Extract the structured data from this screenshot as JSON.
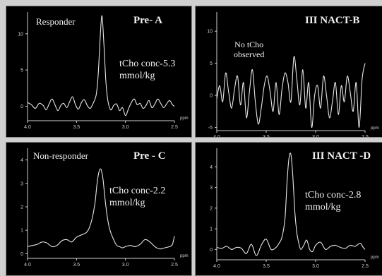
{
  "chart_data": [
    {
      "type": "line",
      "panel_id": "A",
      "group_label": "Responder",
      "title": "Pre- A",
      "annotation": [
        "tCho conc-5.3",
        "mmol/kg"
      ],
      "xlabel": "ppm",
      "xlim": [
        4.0,
        2.5
      ],
      "x_reversed": true,
      "x_ticks": [
        "4.0",
        "3.5",
        "3.0",
        "2.5"
      ],
      "ylim": [
        -2,
        13
      ],
      "y_ticks": [
        "10",
        "5",
        "0"
      ],
      "series": [
        {
          "x": [
            4.0,
            3.96,
            3.92,
            3.88,
            3.84,
            3.81,
            3.78,
            3.75,
            3.72,
            3.69,
            3.66,
            3.63,
            3.6,
            3.57,
            3.54,
            3.51,
            3.48,
            3.45,
            3.42,
            3.39,
            3.36,
            3.33,
            3.3,
            3.28,
            3.26,
            3.24,
            3.22,
            3.2,
            3.18,
            3.15,
            3.12,
            3.09,
            3.06,
            3.03,
            3.0,
            2.97,
            2.94,
            2.91,
            2.88,
            2.85,
            2.82,
            2.79,
            2.76,
            2.73,
            2.7,
            2.67,
            2.64,
            2.61,
            2.58,
            2.55,
            2.52,
            2.5
          ],
          "y": [
            0.5,
            0.2,
            -0.3,
            0.4,
            0.1,
            -0.5,
            0.3,
            1.0,
            0.2,
            -0.6,
            0.1,
            0.4,
            -0.2,
            0.6,
            1.3,
            0.2,
            -0.4,
            0.5,
            0.9,
            0.1,
            -0.3,
            0.4,
            1.5,
            4.0,
            9.0,
            12.5,
            8.5,
            3.5,
            0.8,
            -0.5,
            0.1,
            0.3,
            -0.6,
            -0.2,
            -1.3,
            -0.4,
            0.5,
            1.0,
            0.2,
            0.4,
            -0.3,
            0.1,
            0.8,
            -0.2,
            0.3,
            1.0,
            0.4,
            -0.2,
            0.3,
            0.8,
            0.2,
            0.0
          ]
        }
      ]
    },
    {
      "type": "line",
      "panel_id": "B",
      "title": "III NACT-B",
      "annotation": [
        "No tCho",
        "observed"
      ],
      "xlabel": "ppm",
      "xlim": [
        4.0,
        2.5
      ],
      "x_reversed": true,
      "x_ticks": [
        "4.0",
        "3.5",
        "3.0",
        "2.5"
      ],
      "ylim": [
        -5.5,
        13
      ],
      "y_ticks": [
        "10",
        "5",
        "0",
        "-5"
      ],
      "series": [
        {
          "x": [
            4.0,
            3.97,
            3.94,
            3.91,
            3.88,
            3.85,
            3.82,
            3.79,
            3.76,
            3.73,
            3.7,
            3.67,
            3.64,
            3.61,
            3.58,
            3.55,
            3.52,
            3.49,
            3.46,
            3.43,
            3.4,
            3.37,
            3.34,
            3.31,
            3.28,
            3.25,
            3.22,
            3.19,
            3.16,
            3.13,
            3.1,
            3.07,
            3.04,
            3.01,
            2.98,
            2.95,
            2.92,
            2.89,
            2.86,
            2.83,
            2.8,
            2.77,
            2.74,
            2.71,
            2.68,
            2.65,
            2.62,
            2.59,
            2.56,
            2.53,
            2.5
          ],
          "y": [
            -0.5,
            1.5,
            -1.0,
            3.5,
            0.5,
            -2.0,
            1.0,
            3.0,
            -1.5,
            2.0,
            -3.5,
            0.5,
            4.0,
            -1.0,
            -4.5,
            -2.0,
            1.5,
            3.0,
            0.5,
            -2.5,
            2.0,
            -3.0,
            1.0,
            3.5,
            2.0,
            -1.0,
            6.0,
            2.5,
            -1.5,
            4.0,
            -2.0,
            2.0,
            -5.0,
            0.0,
            1.5,
            -2.0,
            3.0,
            0.0,
            -3.5,
            -1.0,
            2.0,
            -3.0,
            1.5,
            -1.0,
            3.0,
            0.5,
            -2.5,
            2.0,
            -5.0,
            2.5,
            5.0
          ]
        }
      ]
    },
    {
      "type": "line",
      "panel_id": "C",
      "group_label": "Non-responder",
      "title": "Pre - C",
      "annotation": [
        "tCho conc-2.2",
        "mmol/kg"
      ],
      "xlabel": "ppm",
      "xlim": [
        4.0,
        2.5
      ],
      "x_reversed": true,
      "x_ticks": [
        "4.0",
        "3.5",
        "3.0",
        "2.5"
      ],
      "ylim": [
        -0.2,
        4.5
      ],
      "y_ticks": [
        "4",
        "3",
        "2",
        "1",
        "0"
      ],
      "series": [
        {
          "x": [
            4.0,
            3.95,
            3.9,
            3.85,
            3.8,
            3.75,
            3.7,
            3.65,
            3.6,
            3.55,
            3.5,
            3.45,
            3.4,
            3.37,
            3.34,
            3.31,
            3.29,
            3.27,
            3.25,
            3.23,
            3.21,
            3.19,
            3.17,
            3.15,
            3.12,
            3.09,
            3.06,
            3.03,
            3.0,
            2.95,
            2.9,
            2.85,
            2.8,
            2.75,
            2.7,
            2.65,
            2.6,
            2.55,
            2.52,
            2.5
          ],
          "y": [
            0.3,
            0.35,
            0.4,
            0.5,
            0.45,
            0.3,
            0.35,
            0.55,
            0.6,
            0.5,
            0.7,
            0.8,
            0.9,
            1.1,
            1.5,
            2.2,
            3.0,
            3.5,
            3.6,
            3.2,
            2.4,
            1.7,
            1.2,
            0.9,
            0.6,
            0.35,
            0.3,
            0.25,
            0.3,
            0.35,
            0.3,
            0.4,
            0.6,
            0.5,
            0.3,
            0.2,
            0.25,
            0.3,
            0.4,
            0.75
          ]
        }
      ]
    },
    {
      "type": "line",
      "panel_id": "D",
      "title": "III NACT -D",
      "annotation": [
        "tCho conc-2.8",
        "mmol/kg"
      ],
      "xlabel": "ppm",
      "xlim": [
        4.0,
        2.5
      ],
      "x_reversed": true,
      "x_ticks": [
        "4.0",
        "3.5",
        "3.0",
        "2.5"
      ],
      "ylim": [
        -0.5,
        4.9
      ],
      "y_ticks": [
        "4",
        "3",
        "2",
        "1",
        "0"
      ],
      "series": [
        {
          "x": [
            4.0,
            3.95,
            3.9,
            3.85,
            3.8,
            3.75,
            3.7,
            3.65,
            3.6,
            3.55,
            3.5,
            3.45,
            3.4,
            3.37,
            3.34,
            3.31,
            3.29,
            3.27,
            3.25,
            3.23,
            3.21,
            3.19,
            3.17,
            3.15,
            3.12,
            3.09,
            3.06,
            3.03,
            3.0,
            2.95,
            2.9,
            2.85,
            2.8,
            2.75,
            2.7,
            2.65,
            2.6,
            2.55,
            2.52,
            2.5
          ],
          "y": [
            0.1,
            0.05,
            0.15,
            0.0,
            0.1,
            0.05,
            -0.2,
            0.25,
            -0.3,
            0.2,
            0.5,
            0.0,
            0.1,
            0.3,
            0.6,
            1.5,
            3.2,
            4.4,
            4.6,
            3.5,
            1.8,
            0.8,
            0.3,
            0.0,
            0.2,
            0.45,
            0.0,
            -0.1,
            0.2,
            0.35,
            0.0,
            0.15,
            0.2,
            0.1,
            0.05,
            0.2,
            0.15,
            0.3,
            0.1,
            0.0
          ]
        }
      ]
    }
  ]
}
